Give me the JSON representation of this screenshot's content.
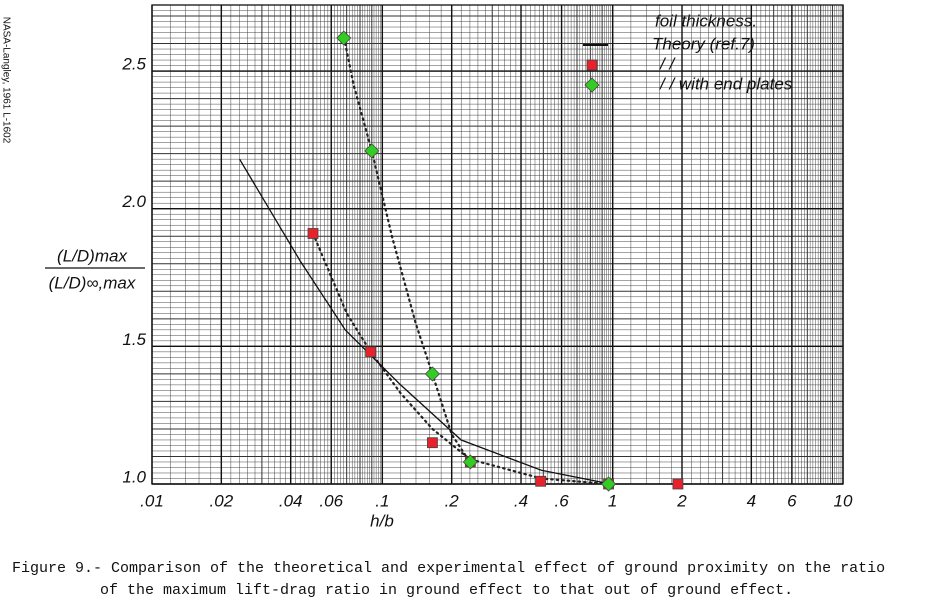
{
  "chart_data": {
    "type": "scatter",
    "x_log": true,
    "grid": true,
    "xlim": [
      0.01,
      10
    ],
    "ylim": [
      1.0,
      2.74
    ],
    "xticks": [
      {
        "value": 0.01,
        "label": ".01"
      },
      {
        "value": 0.02,
        "label": ".02"
      },
      {
        "value": 0.04,
        "label": ".04"
      },
      {
        "value": 0.06,
        "label": ".06"
      },
      {
        "value": 0.1,
        "label": ".1"
      },
      {
        "value": 0.2,
        "label": ".2"
      },
      {
        "value": 0.4,
        "label": ".4"
      },
      {
        "value": 0.6,
        "label": ".6"
      },
      1,
      2,
      4,
      6,
      10
    ],
    "yticks": [
      {
        "value": 1,
        "label": "1.0"
      },
      1.5,
      {
        "value": 2,
        "label": "2.0"
      },
      2.5
    ],
    "x_label": "h/b",
    "y_label": [
      "(L/D)max",
      "(L/D)∞,max"
    ],
    "legend_title": "foil thickness.",
    "side_note": "NASA-Langley, 1961 L-1602",
    "caption": [
      "Figure 9.- Comparison of the theoretical and experimental effect of ground proximity on the ratio",
      "of the maximum lift-drag ratio in ground effect to that out of ground effect."
    ],
    "series": [
      {
        "name": "Theory (ref.7)",
        "kind": "line",
        "color": "#111111",
        "x": [
          0.024,
          0.044,
          0.069,
          0.12,
          0.22,
          0.49,
          0.98
        ],
        "values": [
          2.18,
          1.81,
          1.56,
          1.36,
          1.16,
          1.05,
          1.0
        ]
      },
      {
        "name": "/ /",
        "kind": "square",
        "color": "#e8222a",
        "x": [
          0.05,
          0.089,
          0.165,
          0.241,
          0.487,
          0.96,
          1.92
        ],
        "values": [
          1.91,
          1.48,
          1.15,
          1.08,
          1.01,
          1.0,
          1.0
        ]
      },
      {
        "name": "/ / with end plates",
        "kind": "diamond",
        "color": "#33cc22",
        "x": [
          0.068,
          0.09,
          0.165,
          0.241,
          0.96
        ],
        "values": [
          2.62,
          2.21,
          1.4,
          1.08,
          1.0
        ]
      }
    ],
    "fair_curves": [
      {
        "color": "#222222",
        "x": [
          0.05,
          0.07,
          0.089,
          0.12,
          0.165,
          0.24,
          0.49,
          0.96
        ],
        "values": [
          1.91,
          1.62,
          1.48,
          1.33,
          1.2,
          1.09,
          1.02,
          1.0
        ]
      },
      {
        "color": "#222222",
        "x": [
          0.069,
          0.075,
          0.09,
          0.11,
          0.14,
          0.165,
          0.2,
          0.24
        ],
        "values": [
          2.6,
          2.45,
          2.21,
          1.9,
          1.58,
          1.4,
          1.18,
          1.08
        ]
      }
    ]
  }
}
